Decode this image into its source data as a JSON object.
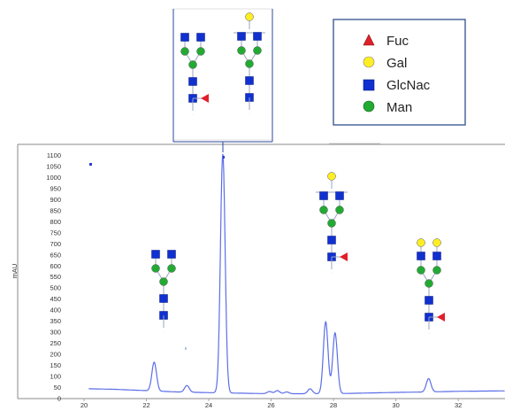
{
  "chart_data": {
    "type": "line",
    "title": "",
    "xlabel": "",
    "ylabel": "mAU",
    "xlim": [
      20,
      33.5
    ],
    "ylim": [
      0,
      1150
    ],
    "x_ticks": [
      "20",
      "22",
      "24",
      "26",
      "28",
      "30",
      "32"
    ],
    "y_ticks": [
      "0",
      "50",
      "100",
      "150",
      "200",
      "250",
      "300",
      "350",
      "400",
      "450",
      "500",
      "550",
      "600",
      "650",
      "700",
      "750",
      "800",
      "850",
      "900",
      "950",
      "1000",
      "1050",
      "1100"
    ],
    "grid": false,
    "series": [
      {
        "color": "#5b6ee8",
        "peaks": [
          {
            "x": 22.25,
            "height": 130
          },
          {
            "x": 23.3,
            "height": 30
          },
          {
            "x": 24.45,
            "height": 1080
          },
          {
            "x": 25.95,
            "height": 10
          },
          {
            "x": 26.2,
            "height": 14
          },
          {
            "x": 26.5,
            "height": 8
          },
          {
            "x": 27.25,
            "height": 22
          },
          {
            "x": 27.75,
            "height": 325
          },
          {
            "x": 28.05,
            "height": 275
          },
          {
            "x": 31.05,
            "height": 60
          }
        ],
        "baseline": [
          [
            20,
            45
          ],
          [
            21,
            42
          ],
          [
            22,
            36
          ],
          [
            23,
            30
          ],
          [
            24,
            27
          ],
          [
            26,
            22
          ],
          [
            28,
            22
          ],
          [
            30,
            28
          ],
          [
            31,
            30
          ],
          [
            32,
            33
          ],
          [
            33.5,
            35
          ]
        ]
      }
    ]
  },
  "legend": {
    "position": "top-right",
    "items": [
      {
        "shape": "triangle",
        "color": "#e0202a",
        "label": "Fuc"
      },
      {
        "shape": "circle",
        "color": "#ffee22",
        "label": "Gal"
      },
      {
        "shape": "square",
        "color": "#1030d0",
        "label": "GlcNac"
      },
      {
        "shape": "circle",
        "color": "#22aa33",
        "label": "Man"
      }
    ]
  }
}
